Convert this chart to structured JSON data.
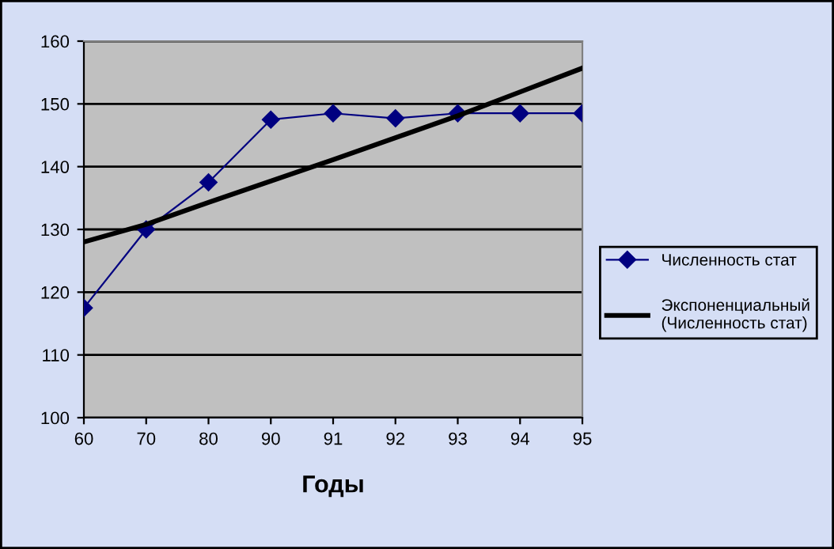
{
  "chart_data": {
    "type": "line",
    "xlabel": "Годы",
    "categories": [
      "60",
      "70",
      "80",
      "90",
      "91",
      "92",
      "93",
      "94",
      "95"
    ],
    "series": [
      {
        "name": "Численность стат",
        "color": "#000080",
        "marker": "diamond",
        "values": [
          117.5,
          130,
          137.5,
          147.5,
          148.5,
          147.7,
          148.5,
          148.5,
          148.5
        ]
      },
      {
        "name": "Экспоненциальный (Численность стат)",
        "color": "#000000",
        "marker": "none",
        "values": [
          128,
          130.8,
          134.3,
          137.7,
          141.1,
          144.6,
          148.1,
          151.9,
          155.7
        ]
      }
    ],
    "ylim": [
      100,
      160
    ],
    "yticks": [
      100,
      110,
      120,
      130,
      140,
      150,
      160
    ],
    "grid": "y",
    "legend": "right"
  }
}
